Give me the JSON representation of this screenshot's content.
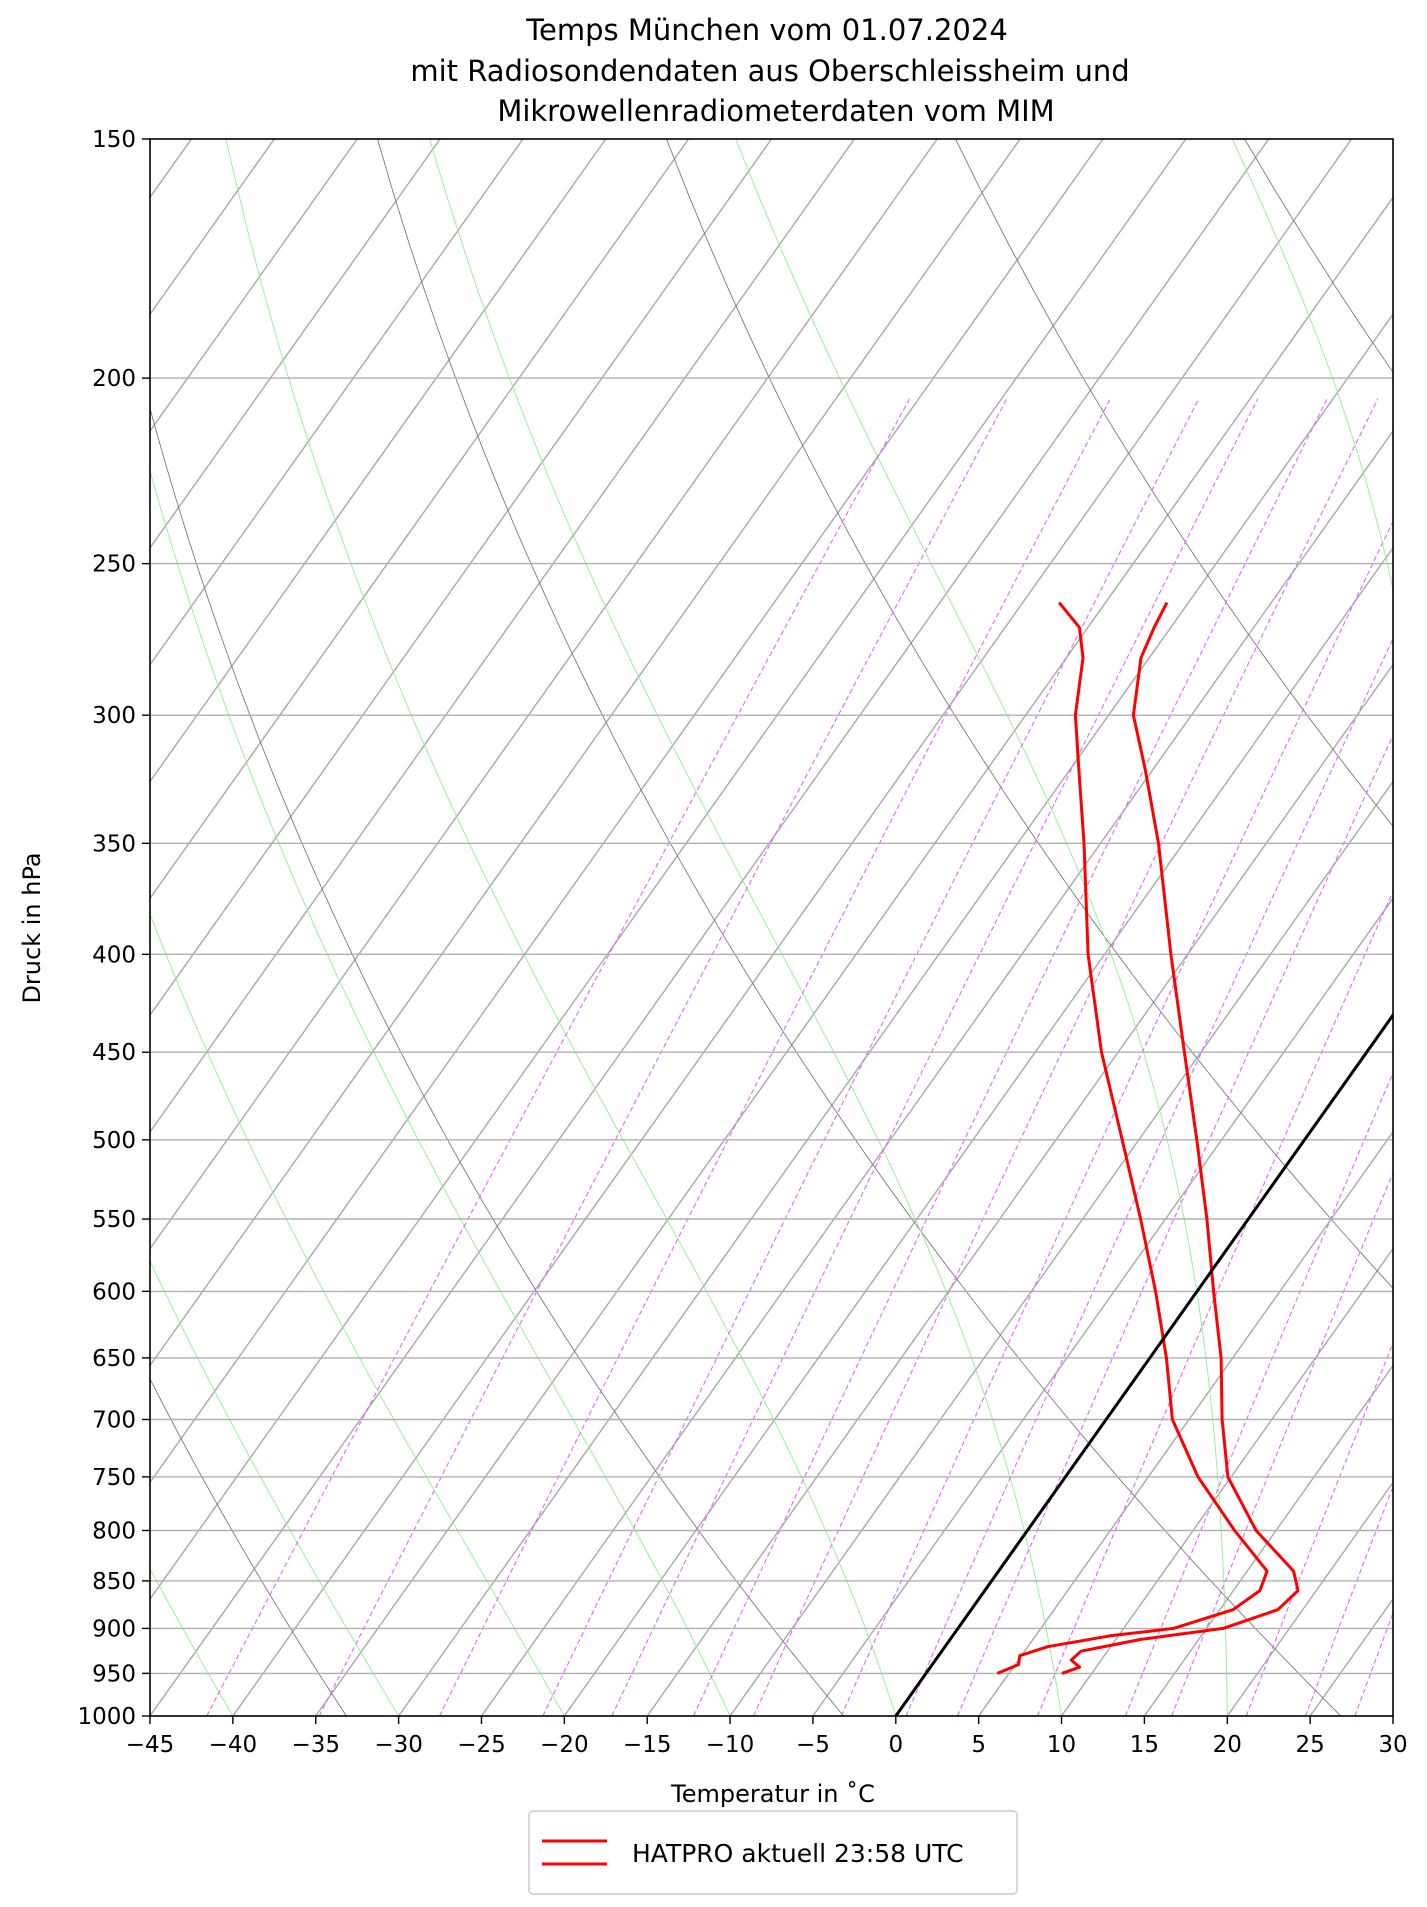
{
  "chart_data": {
    "type": "line",
    "subtype": "skew-T log-p diagram",
    "title": [
      "Temps München vom 01.07.2024",
      "mit Radiosondendaten aus Oberschleissheim und",
      "Mikrowellenradiometerdaten vom MIM"
    ],
    "xlabel": "Temperatur in ˚C",
    "ylabel": "Druck in hPa",
    "xlim": [
      -45,
      30
    ],
    "ylim": [
      1000,
      150
    ],
    "y_scale": "log",
    "x_ticks": [
      -45,
      -40,
      -35,
      -30,
      -25,
      -20,
      -15,
      -10,
      -5,
      0,
      5,
      10,
      15,
      20,
      25,
      30
    ],
    "x_tick_labels": [
      "−45",
      "−40",
      "−35",
      "−30",
      "−25",
      "−20",
      "−15",
      "−10",
      "−5",
      "0",
      "5",
      "10",
      "15",
      "20",
      "25",
      "30"
    ],
    "y_ticks": [
      150,
      200,
      250,
      300,
      350,
      400,
      450,
      500,
      550,
      600,
      650,
      700,
      750,
      800,
      850,
      900,
      950,
      1000
    ],
    "grid": true,
    "legend_position": "bottom-center",
    "legend": [
      {
        "label": "HATPRO aktuell 23:58 UTC",
        "color": "#ff0000"
      }
    ],
    "colors": {
      "profile": "#ff0000",
      "reference_isotherm": "#000000",
      "isotherms": "#a8a8a8",
      "dry_adiabats": "#7a7a7a",
      "moist_adiabats": "#90ee90",
      "mixing_ratio": "#e066ff",
      "grid": "#b0b0b0"
    },
    "series": [
      {
        "name": "HATPRO aktuell 23:58 UTC",
        "type": "temperature",
        "points": [
          {
            "p": 950,
            "t": 8.2
          },
          {
            "p": 943,
            "t": 9.0
          },
          {
            "p": 935,
            "t": 8.2
          },
          {
            "p": 925,
            "t": 8.4
          },
          {
            "p": 912,
            "t": 11.5
          },
          {
            "p": 900,
            "t": 16.0
          },
          {
            "p": 880,
            "t": 18.5
          },
          {
            "p": 860,
            "t": 18.9
          },
          {
            "p": 840,
            "t": 17.8
          },
          {
            "p": 800,
            "t": 13.8
          },
          {
            "p": 750,
            "t": 9.8
          },
          {
            "p": 700,
            "t": 7.0
          },
          {
            "p": 650,
            "t": 4.3
          },
          {
            "p": 600,
            "t": 1.0
          },
          {
            "p": 550,
            "t": -2.5
          },
          {
            "p": 500,
            "t": -6.5
          },
          {
            "p": 450,
            "t": -11.0
          },
          {
            "p": 400,
            "t": -16.0
          },
          {
            "p": 350,
            "t": -21.5
          },
          {
            "p": 320,
            "t": -25.5
          },
          {
            "p": 300,
            "t": -28.5
          },
          {
            "p": 280,
            "t": -30.5
          },
          {
            "p": 270,
            "t": -31.0
          },
          {
            "p": 262,
            "t": -31.3
          }
        ]
      },
      {
        "name": "HATPRO aktuell 23:58 UTC",
        "type": "dewpoint",
        "points": [
          {
            "p": 950,
            "t": 4.3
          },
          {
            "p": 940,
            "t": 5.2
          },
          {
            "p": 930,
            "t": 4.9
          },
          {
            "p": 920,
            "t": 6.2
          },
          {
            "p": 908,
            "t": 9.5
          },
          {
            "p": 900,
            "t": 13.0
          },
          {
            "p": 880,
            "t": 15.8
          },
          {
            "p": 860,
            "t": 16.6
          },
          {
            "p": 840,
            "t": 16.2
          },
          {
            "p": 800,
            "t": 12.5
          },
          {
            "p": 750,
            "t": 8.0
          },
          {
            "p": 700,
            "t": 4.0
          },
          {
            "p": 650,
            "t": 1.0
          },
          {
            "p": 600,
            "t": -2.5
          },
          {
            "p": 550,
            "t": -6.5
          },
          {
            "p": 500,
            "t": -11.0
          },
          {
            "p": 450,
            "t": -16.0
          },
          {
            "p": 400,
            "t": -21.0
          },
          {
            "p": 350,
            "t": -26.0
          },
          {
            "p": 320,
            "t": -29.5
          },
          {
            "p": 300,
            "t": -32.0
          },
          {
            "p": 280,
            "t": -34.0
          },
          {
            "p": 270,
            "t": -35.5
          },
          {
            "p": 262,
            "t": -37.8
          }
        ]
      },
      {
        "name": "",
        "type": "reference-isotherm",
        "points": [
          {
            "p": 1000,
            "t": 0
          },
          {
            "p": 270,
            "t": 0
          }
        ]
      }
    ]
  }
}
